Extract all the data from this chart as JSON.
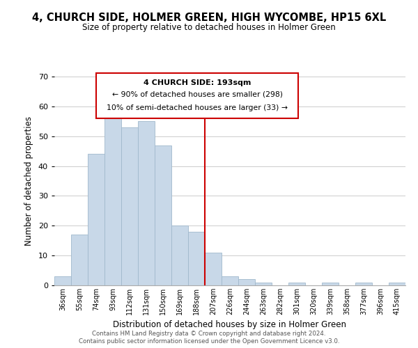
{
  "title": "4, CHURCH SIDE, HOLMER GREEN, HIGH WYCOMBE, HP15 6XL",
  "subtitle": "Size of property relative to detached houses in Holmer Green",
  "xlabel": "Distribution of detached houses by size in Holmer Green",
  "ylabel": "Number of detached properties",
  "bin_labels": [
    "36sqm",
    "55sqm",
    "74sqm",
    "93sqm",
    "112sqm",
    "131sqm",
    "150sqm",
    "169sqm",
    "188sqm",
    "207sqm",
    "226sqm",
    "244sqm",
    "263sqm",
    "282sqm",
    "301sqm",
    "320sqm",
    "339sqm",
    "358sqm",
    "377sqm",
    "396sqm",
    "415sqm"
  ],
  "bar_heights": [
    3,
    17,
    44,
    56,
    53,
    55,
    47,
    20,
    18,
    11,
    3,
    2,
    1,
    0,
    1,
    0,
    1,
    0,
    1,
    0,
    1
  ],
  "bar_color": "#c8d8e8",
  "bar_edge_color": "#a0b8cc",
  "vline_x": 8.5,
  "vline_color": "#cc0000",
  "ylim": [
    0,
    70
  ],
  "yticks": [
    0,
    10,
    20,
    30,
    40,
    50,
    60,
    70
  ],
  "annotation_title": "4 CHURCH SIDE: 193sqm",
  "annotation_line1": "← 90% of detached houses are smaller (298)",
  "annotation_line2": "10% of semi-detached houses are larger (33) →",
  "annotation_box_color": "#ffffff",
  "annotation_box_edge": "#cc0000",
  "footer1": "Contains HM Land Registry data © Crown copyright and database right 2024.",
  "footer2": "Contains public sector information licensed under the Open Government Licence v3.0.",
  "background_color": "#ffffff",
  "grid_color": "#cccccc"
}
